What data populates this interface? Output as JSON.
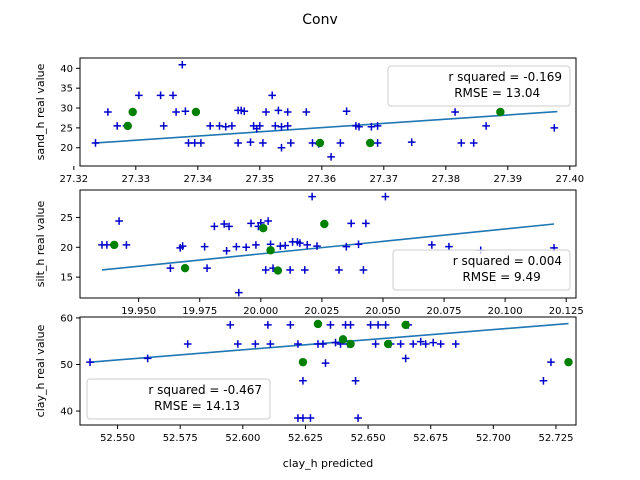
{
  "figure": {
    "title": "Conv"
  },
  "colors": {
    "plus": "#0000cc",
    "dot": "#008000",
    "fit": "#1f77b4"
  },
  "chart_data": [
    {
      "type": "scatter",
      "ylabel": "sand_h real value",
      "xlabel": "",
      "xlim": [
        27.321,
        27.401
      ],
      "ylim": [
        15.4,
        42.6
      ],
      "xticks": [
        27.32,
        27.33,
        27.34,
        27.35,
        27.36,
        27.37,
        27.38,
        27.39,
        27.4
      ],
      "xtick_labels": [
        "27.32",
        "27.33",
        "27.34",
        "27.35",
        "27.36",
        "27.37",
        "27.38",
        "27.39",
        "27.40"
      ],
      "yticks": [
        20,
        25,
        30,
        35,
        40
      ],
      "ytick_labels": [
        "20",
        "25",
        "30",
        "35",
        "40"
      ],
      "legend": {
        "lines": [
          "r squared = -0.169",
          "RMSE = 13.04"
        ],
        "position": "upper right"
      },
      "fit": [
        [
          27.3235,
          21.2
        ],
        [
          27.398,
          29.1
        ]
      ],
      "plus_points": [
        [
          27.3235,
          21.2
        ],
        [
          27.3255,
          29.0
        ],
        [
          27.327,
          25.5
        ],
        [
          27.3285,
          25.5
        ],
        [
          27.3305,
          33.2
        ],
        [
          27.334,
          33.2
        ],
        [
          27.336,
          33.2
        ],
        [
          27.3345,
          25.5
        ],
        [
          27.3365,
          29.0
        ],
        [
          27.338,
          29.2
        ],
        [
          27.3385,
          21.2
        ],
        [
          27.3375,
          40.9
        ],
        [
          27.3395,
          21.2
        ],
        [
          27.3405,
          21.2
        ],
        [
          27.342,
          25.5
        ],
        [
          27.3435,
          25.5
        ],
        [
          27.3445,
          25.3
        ],
        [
          27.3455,
          25.5
        ],
        [
          27.3465,
          29.4
        ],
        [
          27.347,
          29.4
        ],
        [
          27.3475,
          29.2
        ],
        [
          27.3465,
          21.2
        ],
        [
          27.3485,
          21.4
        ],
        [
          27.349,
          25.5
        ],
        [
          27.3495,
          24.8
        ],
        [
          27.35,
          25.5
        ],
        [
          27.3505,
          21.2
        ],
        [
          27.351,
          29.0
        ],
        [
          27.352,
          33.2
        ],
        [
          27.353,
          29.4
        ],
        [
          27.3525,
          25.5
        ],
        [
          27.3535,
          25.3
        ],
        [
          27.3545,
          25.5
        ],
        [
          27.3545,
          29.0
        ],
        [
          27.3535,
          20.0
        ],
        [
          27.355,
          21.2
        ],
        [
          27.3575,
          29.0
        ],
        [
          27.3585,
          21.2
        ],
        [
          27.3595,
          21.0
        ],
        [
          27.3615,
          17.7
        ],
        [
          27.363,
          21.2
        ],
        [
          27.364,
          29.2
        ],
        [
          27.3655,
          25.5
        ],
        [
          27.366,
          25.3
        ],
        [
          27.368,
          25.3
        ],
        [
          27.369,
          25.5
        ],
        [
          27.369,
          21.2
        ],
        [
          27.3745,
          21.4
        ],
        [
          27.3815,
          29.0
        ],
        [
          27.3825,
          21.2
        ],
        [
          27.3845,
          21.2
        ],
        [
          27.3865,
          25.5
        ],
        [
          27.3975,
          25.0
        ]
      ],
      "dot_points": [
        [
          27.3287,
          25.5
        ],
        [
          27.3295,
          29.0
        ],
        [
          27.3397,
          29.0
        ],
        [
          27.3597,
          21.2
        ],
        [
          27.3678,
          21.2
        ],
        [
          27.3888,
          29.0
        ]
      ]
    },
    {
      "type": "scatter",
      "ylabel": "silt_h real value",
      "xlabel": "",
      "xlim": [
        19.926,
        20.129
      ],
      "ylim": [
        11.5,
        29.6
      ],
      "xticks": [
        19.95,
        19.975,
        20.0,
        20.025,
        20.05,
        20.075,
        20.1,
        20.125
      ],
      "xtick_labels": [
        "19.950",
        "19.975",
        "20.000",
        "20.025",
        "20.050",
        "20.075",
        "20.100",
        "20.125"
      ],
      "yticks": [
        15,
        20,
        25
      ],
      "ytick_labels": [
        "15",
        "20",
        "25"
      ],
      "legend": {
        "lines": [
          "r squared = 0.004",
          "RMSE = 9.49"
        ],
        "position": "lower right"
      },
      "fit": [
        [
          19.935,
          16.2
        ],
        [
          20.12,
          23.9
        ]
      ],
      "plus_points": [
        [
          19.935,
          20.4
        ],
        [
          19.937,
          20.4
        ],
        [
          19.942,
          24.4
        ],
        [
          19.945,
          20.4
        ],
        [
          19.963,
          16.5
        ],
        [
          19.967,
          19.9
        ],
        [
          19.968,
          20.2
        ],
        [
          19.977,
          20.1
        ],
        [
          19.978,
          16.5
        ],
        [
          19.981,
          23.5
        ],
        [
          19.985,
          23.9
        ],
        [
          19.987,
          23.5
        ],
        [
          19.986,
          19.4
        ],
        [
          19.99,
          20.1
        ],
        [
          19.991,
          12.4
        ],
        [
          19.994,
          20.0
        ],
        [
          19.996,
          24.0
        ],
        [
          19.998,
          20.4
        ],
        [
          19.999,
          23.5
        ],
        [
          20.0,
          24.1
        ],
        [
          20.002,
          16.2
        ],
        [
          20.003,
          24.4
        ],
        [
          20.004,
          20.5
        ],
        [
          20.005,
          16.5
        ],
        [
          20.008,
          20.2
        ],
        [
          20.01,
          20.3
        ],
        [
          20.012,
          16.2
        ],
        [
          20.013,
          20.9
        ],
        [
          20.015,
          20.9
        ],
        [
          20.016,
          20.7
        ],
        [
          20.018,
          16.2
        ],
        [
          20.019,
          20.4
        ],
        [
          20.021,
          28.5
        ],
        [
          20.023,
          20.2
        ],
        [
          20.032,
          16.2
        ],
        [
          20.035,
          20.1
        ],
        [
          20.037,
          24.0
        ],
        [
          20.04,
          20.5
        ],
        [
          20.042,
          16.2
        ],
        [
          20.043,
          24.0
        ],
        [
          20.051,
          28.5
        ],
        [
          20.07,
          20.4
        ],
        [
          20.077,
          20.1
        ],
        [
          20.09,
          19.5
        ],
        [
          20.12,
          19.9
        ]
      ],
      "dot_points": [
        [
          19.94,
          20.4
        ],
        [
          19.969,
          16.5
        ],
        [
          20.001,
          23.2
        ],
        [
          20.004,
          19.5
        ],
        [
          20.007,
          16.1
        ],
        [
          20.026,
          23.9
        ]
      ]
    },
    {
      "type": "scatter",
      "ylabel": "clay_h real value",
      "xlabel": "clay_h predicted",
      "xlim": [
        52.535,
        52.733
      ],
      "ylim": [
        37.0,
        60.2
      ],
      "xticks": [
        52.55,
        52.575,
        52.6,
        52.625,
        52.65,
        52.675,
        52.7,
        52.725
      ],
      "xtick_labels": [
        "52.550",
        "52.575",
        "52.600",
        "52.625",
        "52.650",
        "52.675",
        "52.700",
        "52.725"
      ],
      "yticks": [
        40,
        50,
        60
      ],
      "ytick_labels": [
        "40",
        "50",
        "60"
      ],
      "legend": {
        "lines": [
          "r squared = -0.467",
          "RMSE = 14.13"
        ],
        "position": "lower left"
      },
      "fit": [
        [
          52.539,
          50.5
        ],
        [
          52.73,
          58.8
        ]
      ],
      "plus_points": [
        [
          52.539,
          50.5
        ],
        [
          52.562,
          51.3
        ],
        [
          52.578,
          54.4
        ],
        [
          52.595,
          58.5
        ],
        [
          52.598,
          54.4
        ],
        [
          52.605,
          54.4
        ],
        [
          52.61,
          58.5
        ],
        [
          52.611,
          54.4
        ],
        [
          52.619,
          58.5
        ],
        [
          52.622,
          54.4
        ],
        [
          52.622,
          38.5
        ],
        [
          52.624,
          38.5
        ],
        [
          52.624,
          46.5
        ],
        [
          52.627,
          38.5
        ],
        [
          52.63,
          54.4
        ],
        [
          52.632,
          54.4
        ],
        [
          52.633,
          50.3
        ],
        [
          52.635,
          58.5
        ],
        [
          52.637,
          54.7
        ],
        [
          52.639,
          54.4
        ],
        [
          52.641,
          58.5
        ],
        [
          52.642,
          54.4
        ],
        [
          52.643,
          58.5
        ],
        [
          52.645,
          46.5
        ],
        [
          52.646,
          38.5
        ],
        [
          52.651,
          58.5
        ],
        [
          52.653,
          54.4
        ],
        [
          52.654,
          58.5
        ],
        [
          52.657,
          58.5
        ],
        [
          52.659,
          54.4
        ],
        [
          52.663,
          54.4
        ],
        [
          52.665,
          51.3
        ],
        [
          52.666,
          58.5
        ],
        [
          52.668,
          54.4
        ],
        [
          52.671,
          54.9
        ],
        [
          52.673,
          54.4
        ],
        [
          52.676,
          54.7
        ],
        [
          52.679,
          54.4
        ],
        [
          52.685,
          54.4
        ],
        [
          52.72,
          46.5
        ],
        [
          52.723,
          50.5
        ]
      ],
      "dot_points": [
        [
          52.624,
          50.5
        ],
        [
          52.63,
          58.7
        ],
        [
          52.64,
          55.4
        ],
        [
          52.643,
          54.4
        ],
        [
          52.658,
          54.4
        ],
        [
          52.665,
          58.5
        ],
        [
          52.73,
          50.5
        ]
      ]
    }
  ]
}
